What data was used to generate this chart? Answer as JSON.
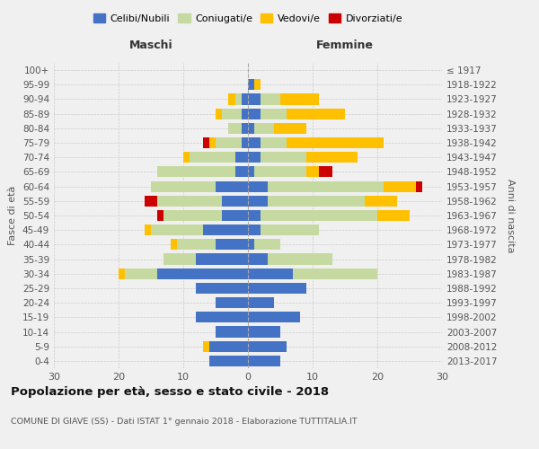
{
  "age_groups": [
    "0-4",
    "5-9",
    "10-14",
    "15-19",
    "20-24",
    "25-29",
    "30-34",
    "35-39",
    "40-44",
    "45-49",
    "50-54",
    "55-59",
    "60-64",
    "65-69",
    "70-74",
    "75-79",
    "80-84",
    "85-89",
    "90-94",
    "95-99",
    "100+"
  ],
  "birth_years": [
    "2013-2017",
    "2008-2012",
    "2003-2007",
    "1998-2002",
    "1993-1997",
    "1988-1992",
    "1983-1987",
    "1978-1982",
    "1973-1977",
    "1968-1972",
    "1963-1967",
    "1958-1962",
    "1953-1957",
    "1948-1952",
    "1943-1947",
    "1938-1942",
    "1933-1937",
    "1928-1932",
    "1923-1927",
    "1918-1922",
    "≤ 1917"
  ],
  "colors": {
    "celibi": "#4472c4",
    "coniugati": "#c5d9a0",
    "vedovi": "#ffc000",
    "divorziati": "#cc0000"
  },
  "males": {
    "celibi": [
      6,
      6,
      5,
      8,
      5,
      8,
      14,
      8,
      5,
      7,
      4,
      4,
      5,
      2,
      2,
      1,
      1,
      1,
      1,
      0,
      0
    ],
    "coniugati": [
      0,
      0,
      0,
      0,
      0,
      0,
      5,
      5,
      6,
      8,
      9,
      10,
      10,
      12,
      7,
      4,
      2,
      3,
      1,
      0,
      0
    ],
    "vedovi": [
      0,
      1,
      0,
      0,
      0,
      0,
      1,
      0,
      1,
      1,
      0,
      0,
      0,
      0,
      1,
      1,
      0,
      1,
      1,
      0,
      0
    ],
    "divorziati": [
      0,
      0,
      0,
      0,
      0,
      0,
      0,
      0,
      0,
      0,
      1,
      2,
      0,
      0,
      0,
      1,
      0,
      0,
      0,
      0,
      0
    ]
  },
  "females": {
    "nubili": [
      5,
      6,
      5,
      8,
      4,
      9,
      7,
      3,
      1,
      2,
      2,
      3,
      3,
      1,
      2,
      2,
      1,
      2,
      2,
      1,
      0
    ],
    "coniugate": [
      0,
      0,
      0,
      0,
      0,
      0,
      13,
      10,
      4,
      9,
      18,
      15,
      18,
      8,
      7,
      4,
      3,
      4,
      3,
      0,
      0
    ],
    "vedove": [
      0,
      0,
      0,
      0,
      0,
      0,
      0,
      0,
      0,
      0,
      5,
      5,
      5,
      2,
      8,
      15,
      5,
      9,
      6,
      1,
      0
    ],
    "divorziate": [
      0,
      0,
      0,
      0,
      0,
      0,
      0,
      0,
      0,
      0,
      0,
      0,
      1,
      2,
      0,
      0,
      0,
      0,
      0,
      0,
      0
    ]
  },
  "title": "Popolazione per età, sesso e stato civile - 2018",
  "subtitle": "COMUNE DI GIAVE (SS) - Dati ISTAT 1° gennaio 2018 - Elaborazione TUTTITALIA.IT",
  "xlabel_maschi": "Maschi",
  "xlabel_femmine": "Femmine",
  "ylabel_left": "Fasce di età",
  "ylabel_right": "Anni di nascita",
  "xlim": 30,
  "bg_color": "#f0f0f0"
}
